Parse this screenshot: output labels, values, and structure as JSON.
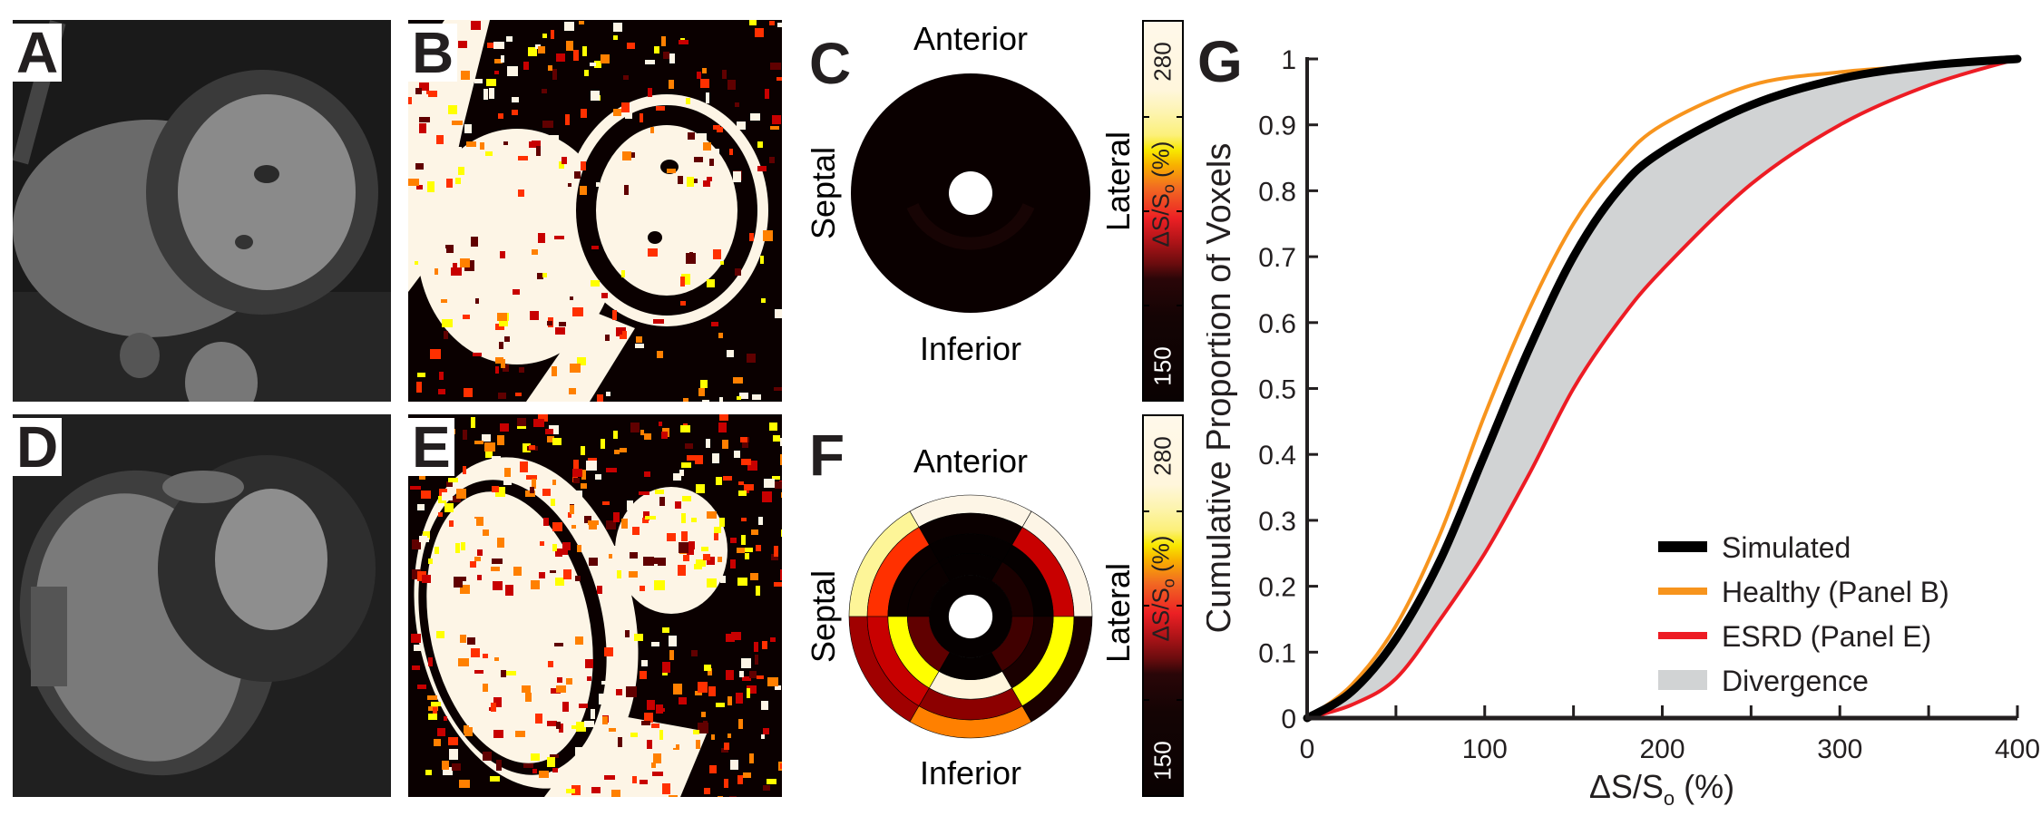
{
  "panels": {
    "a": {
      "letter": "A"
    },
    "b": {
      "letter": "B"
    },
    "c": {
      "letter": "C",
      "anterior": "Anterior",
      "septal": "Septal",
      "inferior": "Inferior",
      "lateral": "Lateral",
      "colorbar": {
        "max": "280",
        "min": "150",
        "label_main": "ΔS/S",
        "label_sub": "o",
        "label_unit": " (%)"
      }
    },
    "d": {
      "letter": "D"
    },
    "e": {
      "letter": "E"
    },
    "f": {
      "letter": "F",
      "anterior": "Anterior",
      "septal": "Septal",
      "inferior": "Inferior",
      "lateral": "Lateral",
      "colorbar": {
        "max": "280",
        "min": "150",
        "label_main": "ΔS/S",
        "label_sub": "o",
        "label_unit": " (%)"
      },
      "bullseye_rings": [
        [
          "#fdf5e6",
          "#fdf5e6",
          "#fdf598",
          "#a00000",
          "#ff8000",
          "#1a0000"
        ],
        [
          "#c80000",
          "#0a0000",
          "#ff3000",
          "#c80000",
          "#8c0000",
          "#ffff00"
        ],
        [
          "#050000",
          "#050000",
          "#0a0000",
          "#ffff00",
          "#fff5dc",
          "#1a0000"
        ],
        [
          "#1a0000",
          "#050000",
          "#0a0000",
          "#600000",
          "#050000",
          "#400000"
        ]
      ]
    },
    "g": {
      "letter": "G"
    }
  },
  "chart_data": {
    "type": "line",
    "title": "",
    "xlabel_main": "ΔS/S",
    "xlabel_sub": "o",
    "xlabel_unit": " (%)",
    "ylabel": "Cumulative Proportion of Voxels",
    "xlim": [
      0,
      400
    ],
    "ylim": [
      0,
      1
    ],
    "xticks": [
      0,
      100,
      200,
      300,
      400
    ],
    "yticks": [
      0,
      0.1,
      0.2,
      0.3,
      0.4,
      0.5,
      0.6,
      0.7,
      0.8,
      0.9,
      1
    ],
    "ytick_labels": [
      "0",
      "0.1",
      "0.2",
      "0.3",
      "0.4",
      "0.5",
      "0.6",
      "0.7",
      "0.8",
      "0.9",
      "1"
    ],
    "legend_position": "bottom-right",
    "x": [
      0,
      25,
      50,
      75,
      100,
      125,
      150,
      175,
      200,
      250,
      300,
      350,
      400
    ],
    "series": [
      {
        "name": "Simulated",
        "color": "#000000",
        "values": [
          0,
          0.04,
          0.12,
          0.24,
          0.4,
          0.56,
          0.7,
          0.8,
          0.86,
          0.93,
          0.97,
          0.99,
          1.0
        ]
      },
      {
        "name": "Healthy (Panel B)",
        "color": "#f7941d",
        "values": [
          0,
          0.05,
          0.14,
          0.28,
          0.46,
          0.62,
          0.75,
          0.84,
          0.9,
          0.96,
          0.98,
          0.99,
          1.0
        ]
      },
      {
        "name": "ESRD (Panel E)",
        "color": "#ed1c24",
        "values": [
          0,
          0.02,
          0.06,
          0.15,
          0.25,
          0.37,
          0.5,
          0.6,
          0.68,
          0.81,
          0.9,
          0.96,
          1.0
        ]
      }
    ],
    "fill": {
      "name": "Divergence",
      "color": "#d1d3d4",
      "between": [
        "Simulated",
        "ESRD (Panel E)"
      ]
    }
  }
}
